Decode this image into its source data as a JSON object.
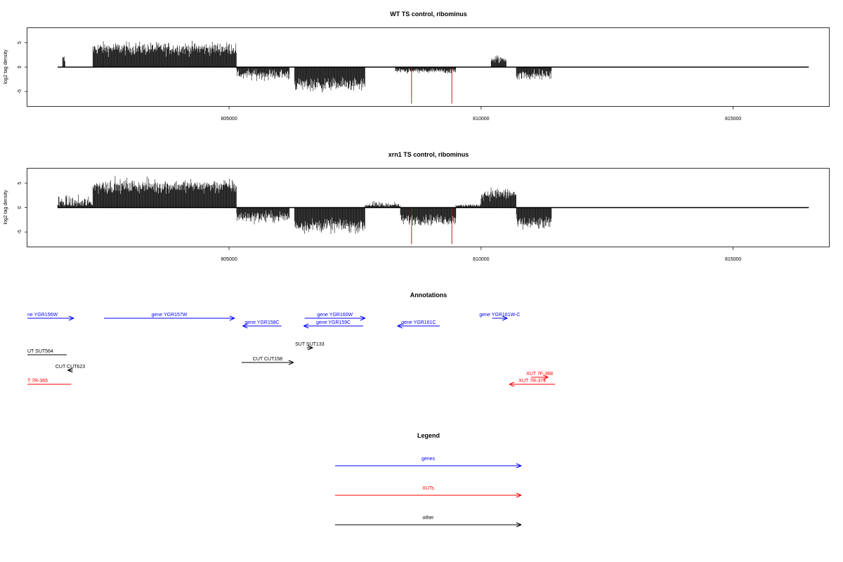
{
  "colors": {
    "gene": "#0000ff",
    "xut": "#ff0000",
    "other": "#000000",
    "highlight": "#b22222",
    "frame": "#000000"
  },
  "xaxis": {
    "xlim": [
      801000,
      816900
    ],
    "ticks": [
      805000,
      810000,
      815000
    ],
    "tick_labels": [
      "805000",
      "810000",
      "815000"
    ]
  },
  "chart_data": [
    {
      "type": "bar",
      "title": "WT TS control, ribominus",
      "ylabel": "log2 tag density",
      "ylim": [
        -8,
        8
      ],
      "yticks": [
        -5,
        0,
        5
      ],
      "ytick_labels": [
        "-5",
        "0",
        "5"
      ],
      "baseline": {
        "x": [
          801600,
          816500
        ],
        "y": 0
      },
      "highlight_positions": [
        808620,
        809420
      ],
      "highlight_value": -7.5,
      "regions": [
        {
          "x": [
            801700,
            801750
          ],
          "mean": 1.5,
          "sd": 1.0
        },
        {
          "x": [
            802300,
            805150
          ],
          "mean": 3.8,
          "sd": 1.2
        },
        {
          "x": [
            805150,
            806200
          ],
          "mean": -1.5,
          "sd": 1.0
        },
        {
          "x": [
            806300,
            807700
          ],
          "mean": -3.6,
          "sd": 1.3
        },
        {
          "x": [
            808300,
            809500
          ],
          "mean": -0.8,
          "sd": 0.5
        },
        {
          "x": [
            810200,
            810500
          ],
          "mean": 1.6,
          "sd": 0.8
        },
        {
          "x": [
            810700,
            811400
          ],
          "mean": -1.6,
          "sd": 1.0
        }
      ]
    },
    {
      "type": "bar",
      "title": "xrn1 TS control, ribominus",
      "ylabel": "log2 tag density",
      "ylim": [
        -8,
        8
      ],
      "yticks": [
        -5,
        0,
        5
      ],
      "ytick_labels": [
        "-5",
        "0",
        "5"
      ],
      "baseline": {
        "x": [
          801600,
          816500
        ],
        "y": 0
      },
      "highlight_positions": [
        808620,
        809420
      ],
      "highlight_value": -7.5,
      "regions": [
        {
          "x": [
            801600,
            802300
          ],
          "mean": 0.9,
          "sd": 1.3
        },
        {
          "x": [
            802300,
            805150
          ],
          "mean": 4.4,
          "sd": 1.3
        },
        {
          "x": [
            805150,
            806200
          ],
          "mean": -1.9,
          "sd": 1.1
        },
        {
          "x": [
            806300,
            807700
          ],
          "mean": -3.7,
          "sd": 1.3
        },
        {
          "x": [
            807700,
            808400
          ],
          "mean": 0.5,
          "sd": 0.6
        },
        {
          "x": [
            808400,
            809500
          ],
          "mean": -2.5,
          "sd": 1.0
        },
        {
          "x": [
            809500,
            810000
          ],
          "mean": 0.2,
          "sd": 0.5
        },
        {
          "x": [
            810000,
            810700
          ],
          "mean": 2.8,
          "sd": 1.2
        },
        {
          "x": [
            810700,
            811400
          ],
          "mean": -3.3,
          "sd": 1.3
        }
      ]
    }
  ],
  "annotations": {
    "title": "Annotations",
    "features": [
      {
        "label": "ne YGR156W",
        "type": "gene",
        "start": 801000,
        "end": 801920,
        "strand": "+",
        "row": 0
      },
      {
        "label": "gene YGR157W",
        "type": "gene",
        "start": 802520,
        "end": 805110,
        "strand": "+",
        "row": 0
      },
      {
        "label": "gene YGR158C",
        "type": "gene",
        "start": 805270,
        "end": 806040,
        "strand": "-",
        "row": 1
      },
      {
        "label": "gene YGR160W",
        "type": "gene",
        "start": 806500,
        "end": 807700,
        "strand": "+",
        "row": 0
      },
      {
        "label": "gene YGR159C",
        "type": "gene",
        "start": 806480,
        "end": 807660,
        "strand": "-",
        "row": 1
      },
      {
        "label": "gene YGR161C",
        "type": "gene",
        "start": 808340,
        "end": 809180,
        "strand": "-",
        "row": 1
      },
      {
        "label": "gene YGR161W-C",
        "type": "gene",
        "start": 810220,
        "end": 810520,
        "strand": "+",
        "row": 0
      },
      {
        "label": "SUT SUT133",
        "type": "other",
        "start": 806540,
        "end": 806660,
        "strand": "+",
        "row": 2
      },
      {
        "label": "UT SUT564",
        "type": "other",
        "start": 801000,
        "end": 801780,
        "strand": "none",
        "row": 3
      },
      {
        "label": "CUT CUT158",
        "type": "other",
        "start": 805250,
        "end": 806280,
        "strand": "+",
        "row": 4
      },
      {
        "label": "CUT CUT623",
        "type": "other",
        "start": 801800,
        "end": 801900,
        "strand": "-",
        "row": 5
      },
      {
        "label": "XUT 7F-368",
        "type": "xut",
        "start": 810990,
        "end": 811330,
        "strand": "+",
        "row": 6
      },
      {
        "label": "T 7R-365",
        "type": "xut",
        "start": 801000,
        "end": 801870,
        "strand": "none",
        "row": 7
      },
      {
        "label": "XUT 7R-374",
        "type": "xut",
        "start": 810560,
        "end": 811470,
        "strand": "-",
        "row": 7
      }
    ]
  },
  "legend": {
    "title": "Legend",
    "items": [
      {
        "label": "genes",
        "type": "gene"
      },
      {
        "label": "XUTs",
        "type": "xut"
      },
      {
        "label": "other",
        "type": "other"
      }
    ]
  }
}
